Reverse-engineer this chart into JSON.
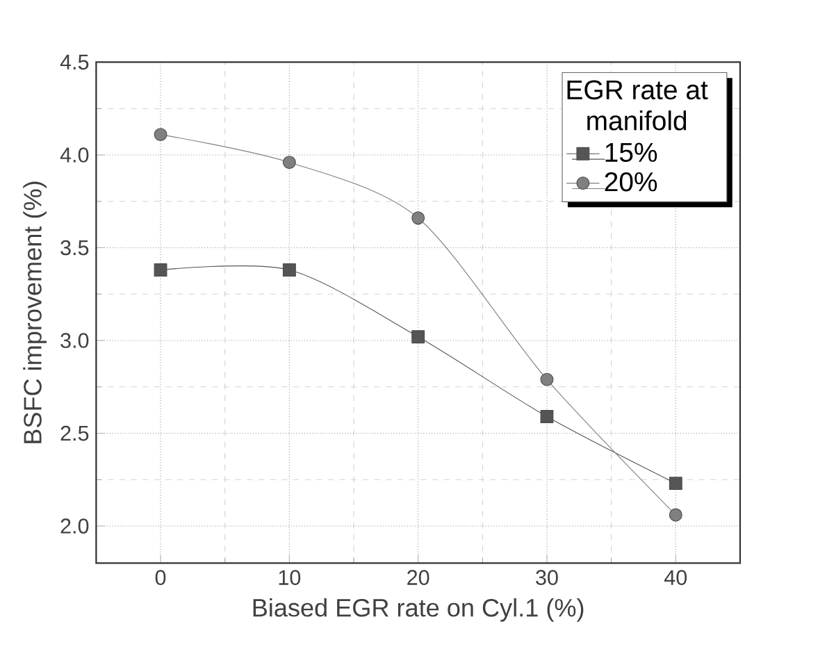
{
  "chart_data": {
    "type": "line",
    "xlabel": "Biased EGR rate on Cyl.1 (%)",
    "ylabel": "BSFC improvement (%)",
    "legend_title": "EGR rate at manifold",
    "x": [
      0,
      10,
      20,
      30,
      40
    ],
    "series": [
      {
        "name": "15%",
        "color": "#555555",
        "marker": "square",
        "values": [
          3.38,
          3.38,
          3.02,
          2.59,
          2.23
        ]
      },
      {
        "name": "20%",
        "color": "#808080",
        "marker": "circle",
        "values": [
          4.11,
          3.96,
          3.66,
          2.79,
          2.06
        ]
      }
    ],
    "xlim": [
      -5,
      45
    ],
    "ylim": [
      1.8,
      4.5
    ],
    "xticks": [
      0,
      10,
      20,
      30,
      40
    ],
    "yticks": [
      {
        "value": 2,
        "label": "2.0"
      },
      {
        "value": 2.5,
        "label": "2.5"
      },
      {
        "value": 3,
        "label": "3.0"
      },
      {
        "value": 3.5,
        "label": "3.5"
      },
      {
        "value": 4,
        "label": "4.0"
      },
      {
        "value": 4.5,
        "label": "4.5"
      }
    ],
    "grid": true,
    "legend": "top right"
  }
}
